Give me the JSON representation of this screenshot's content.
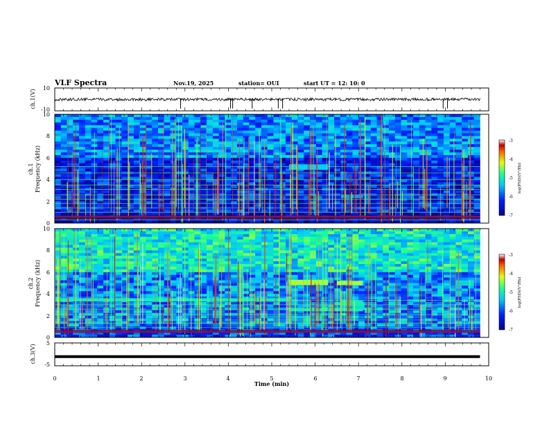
{
  "header": {
    "title": "VLF Spectra",
    "date": "Nov.19, 2025",
    "station": "station= OUI",
    "start": "start  UT =   12: 10: 0"
  },
  "chart_data": [
    {
      "id": "ch1-waveform",
      "type": "line",
      "ylabel": "ch.1(V)",
      "ylim": [
        -10,
        10
      ],
      "yticks": [
        "10",
        "-10"
      ],
      "xlim": [
        0,
        10
      ],
      "baseline": 0,
      "spikes_x_min": [
        2.9,
        4.05,
        4.1,
        4.55,
        5.15,
        5.25,
        8.95,
        9.05
      ]
    },
    {
      "id": "ch1-spectrogram",
      "type": "heatmap",
      "ylabel": "ch.1",
      "ylabel2": "Frequency (kHz)",
      "ylim": [
        0,
        10
      ],
      "yticks": [
        "0",
        "2",
        "4",
        "6",
        "8",
        "10"
      ],
      "xlim": [
        0,
        10
      ],
      "colorbar": {
        "label": "log(PSD)(V²/Hz)",
        "ticks": [
          "-3",
          "-4",
          "-5",
          "-6",
          "-7"
        ],
        "range": [
          -7,
          -3
        ]
      },
      "bands_khz": [
        0.3,
        0.6,
        1.0,
        1.4,
        1.8,
        2.2,
        2.6,
        3.1,
        3.5,
        4.0,
        4.6,
        5.2
      ],
      "features": [
        {
          "label": "emission",
          "t": [
            5.4,
            6.3
          ],
          "f_khz": [
            4.9,
            5.4
          ],
          "psd": -5.3
        },
        {
          "label": "emission",
          "t": [
            6.6,
            7.1
          ],
          "f_khz": [
            2.3,
            2.6
          ],
          "psd": -5.6
        }
      ]
    },
    {
      "id": "ch2-spectrogram",
      "type": "heatmap",
      "ylabel": "ch.2",
      "ylabel2": "Frequency (kHz)",
      "ylim": [
        0,
        10
      ],
      "yticks": [
        "0",
        "2",
        "4",
        "6",
        "8",
        "10"
      ],
      "xlim": [
        0,
        10
      ],
      "colorbar": {
        "label": "log(PSD)(V²/Hz)",
        "ticks": [
          "-3",
          "-4",
          "-5",
          "-6",
          "-7"
        ],
        "range": [
          -7,
          -3
        ]
      },
      "bands_khz": [
        0.5,
        0.9,
        1.3,
        1.6,
        2.1,
        2.6,
        3.0,
        3.4
      ],
      "features": [
        {
          "label": "emission",
          "t": [
            0.0,
            5.4
          ],
          "f_khz": [
            3.3,
            3.6
          ],
          "psd": -5.0
        },
        {
          "label": "emission",
          "t": [
            5.4,
            6.3
          ],
          "f_khz": [
            4.8,
            5.3
          ],
          "psd": -4.4
        },
        {
          "label": "emission",
          "t": [
            6.5,
            7.1
          ],
          "f_khz": [
            4.8,
            5.2
          ],
          "psd": -4.4
        },
        {
          "label": "emission",
          "t": [
            5.4,
            7.1
          ],
          "f_khz": [
            2.4,
            2.7
          ],
          "psd": -5.0
        },
        {
          "label": "emission",
          "t": [
            6.6,
            7.1
          ],
          "f_khz": [
            2.9,
            3.4
          ],
          "psd": -5.0
        }
      ]
    },
    {
      "id": "ch3-waveform",
      "type": "line",
      "ylabel": "ch.3(V)",
      "ylim": [
        -5,
        5
      ],
      "yticks": [
        "5",
        "-5"
      ],
      "xlim": [
        0,
        10
      ],
      "baseline": -1
    }
  ],
  "xaxis": {
    "label": "Time (min)",
    "ticks": [
      "0",
      "1",
      "2",
      "3",
      "4",
      "5",
      "6",
      "7",
      "8",
      "9",
      "10"
    ],
    "data_end_min": 9.8
  }
}
